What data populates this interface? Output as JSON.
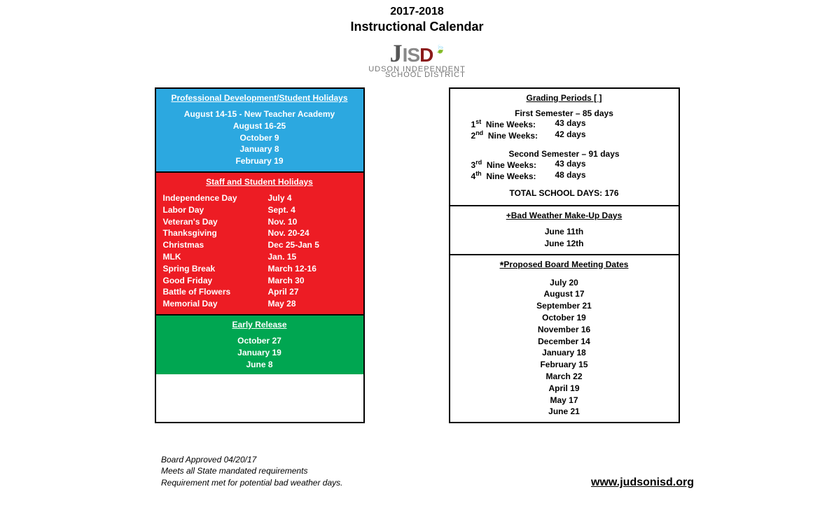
{
  "header": {
    "year": "2017-2018",
    "title": "Instructional Calendar"
  },
  "logo": {
    "line2a": "UDSON INDEPENDENT",
    "line2b": "SCHOOL DISTRICT"
  },
  "left": {
    "blue": {
      "title": "Professional Development/Student Holidays",
      "highlight": "August 14-15 - New Teacher Academy",
      "dates": [
        "August 16-25",
        "October 9",
        "January 8",
        "February 19"
      ]
    },
    "red": {
      "title": "Staff and Student Holidays",
      "rows": [
        {
          "name": "Independence Day",
          "date": "July 4"
        },
        {
          "name": "Labor Day",
          "date": "Sept. 4"
        },
        {
          "name": "Veteran's Day",
          "date": "Nov. 10"
        },
        {
          "name": "Thanksgiving",
          "date": "Nov. 20-24"
        },
        {
          "name": "Christmas",
          "date": "Dec 25-Jan 5"
        },
        {
          "name": " MLK",
          "date": "Jan. 15"
        },
        {
          "name": "Spring Break",
          "date": "March 12-16"
        },
        {
          "name": "Good Friday",
          "date": "March 30"
        },
        {
          "name": "Battle of Flowers",
          "date": "April 27"
        },
        {
          "name": "Memorial Day",
          "date": "May 28"
        }
      ]
    },
    "green": {
      "title": "Early Release",
      "dates": [
        "October 27",
        "January 19",
        "June 8"
      ]
    }
  },
  "right": {
    "grading": {
      "title": "Grading Periods [ ]",
      "sem1_title": "First Semester – 85 days",
      "sem1_rows": [
        {
          "ord": "1",
          "sup": "st",
          "label": "Nine Weeks:",
          "days": "43 days"
        },
        {
          "ord": "2",
          "sup": "nd",
          "label": "Nine Weeks:",
          "days": "42 days"
        }
      ],
      "sem2_title": "Second Semester – 91 days",
      "sem2_rows": [
        {
          "ord": "3",
          "sup": "rd",
          "label": "Nine Weeks:",
          "days": "43 days"
        },
        {
          "ord": "4",
          "sup": "th",
          "label": "Nine Weeks:",
          "days": "48 days"
        }
      ],
      "total": "TOTAL SCHOOL DAYS:  176"
    },
    "badweather": {
      "title": "+Bad Weather Make-Up Days",
      "dates": [
        "June 11th",
        "June 12th"
      ]
    },
    "board": {
      "title": "*Proposed Board Meeting Dates",
      "dates": [
        "July 20",
        "August 17",
        "September 21",
        "October 19",
        "November 16",
        "December 14",
        "January 18",
        "February 15",
        "March 22",
        "April 19",
        "May 17",
        "June 21"
      ]
    }
  },
  "footer": {
    "approved": "Board Approved 04/20/17",
    "mandate": "Meets all State mandated requirements",
    "weather": "Requirement met for potential bad weather days.",
    "url": "www.judsonisd.org"
  }
}
